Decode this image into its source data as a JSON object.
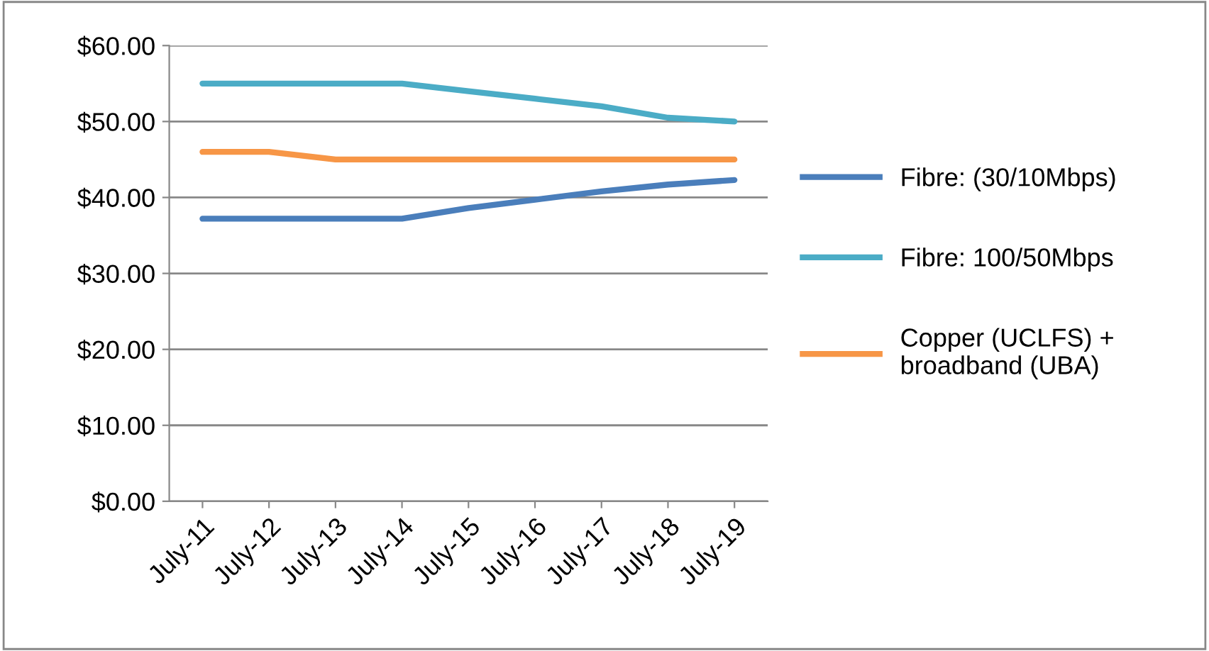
{
  "chart_data": {
    "type": "line",
    "categories": [
      "July-11",
      "July-12",
      "July-13",
      "July-14",
      "July-15",
      "July-16",
      "July-17",
      "July-18",
      "July-19"
    ],
    "series": [
      {
        "name": "Fibre: (30/10Mbps)",
        "color": "#4a7ebb",
        "values": [
          37.2,
          37.2,
          37.2,
          37.2,
          38.6,
          39.7,
          40.8,
          41.7,
          42.3
        ]
      },
      {
        "name": "Fibre: 100/50Mbps",
        "color": "#4bacc6",
        "values": [
          55,
          55,
          55,
          55,
          54,
          53,
          52,
          50.5,
          50
        ]
      },
      {
        "name": "Copper (UCLFS) + broadband (UBA)",
        "color": "#f79646",
        "values": [
          46,
          46,
          45,
          45,
          45,
          45,
          45,
          45,
          45
        ]
      }
    ],
    "ylim": [
      0,
      60
    ],
    "yticks": [
      {
        "value": 0,
        "label": "$0.00"
      },
      {
        "value": 10,
        "label": "$10.00"
      },
      {
        "value": 20,
        "label": "$20.00"
      },
      {
        "value": 30,
        "label": "$30.00"
      },
      {
        "value": 40,
        "label": "$40.00"
      },
      {
        "value": 50,
        "label": "$50.00"
      },
      {
        "value": 60,
        "label": "$60.00"
      }
    ],
    "grid": "y",
    "legend": "right",
    "marker": "none",
    "line_style": "solid"
  }
}
